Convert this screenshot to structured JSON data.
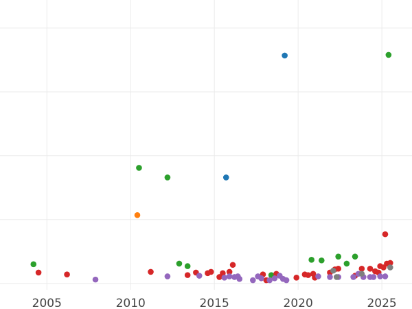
{
  "chart_data": {
    "type": "scatter",
    "title": "",
    "xlabel": "",
    "ylabel": "",
    "x_ticks": [
      2005,
      2010,
      2015,
      2020,
      2025
    ],
    "xlim": [
      2002.2,
      2026.8
    ],
    "ylim": [
      -0.1,
      4.44
    ],
    "y_gridlines": [
      0,
      1,
      2,
      3,
      4
    ],
    "grid": true,
    "legend": "none",
    "series": [
      {
        "color": "#1f77b4",
        "points": [
          [
            2019.2,
            3.57
          ],
          [
            2015.7,
            1.66
          ]
        ]
      },
      {
        "color": "#2ca02c",
        "points": [
          [
            2025.4,
            3.58
          ],
          [
            2010.5,
            1.81
          ],
          [
            2012.2,
            1.66
          ],
          [
            2004.2,
            0.3
          ],
          [
            2012.9,
            0.31
          ],
          [
            2013.4,
            0.27
          ],
          [
            2020.8,
            0.37
          ],
          [
            2021.4,
            0.36
          ],
          [
            2022.4,
            0.42
          ],
          [
            2023.4,
            0.42
          ],
          [
            2022.9,
            0.31
          ],
          [
            2018.4,
            0.13
          ]
        ]
      },
      {
        "color": "#ff7f0e",
        "points": [
          [
            2010.4,
            1.07
          ]
        ]
      },
      {
        "color": "#d62728",
        "points": [
          [
            2025.2,
            0.77
          ],
          [
            2004.5,
            0.17
          ],
          [
            2006.2,
            0.14
          ],
          [
            2011.2,
            0.18
          ],
          [
            2013.4,
            0.13
          ],
          [
            2013.9,
            0.17
          ],
          [
            2014.6,
            0.16
          ],
          [
            2014.8,
            0.18
          ],
          [
            2015.3,
            0.1
          ],
          [
            2015.5,
            0.16
          ],
          [
            2015.9,
            0.18
          ],
          [
            2016.1,
            0.29
          ],
          [
            2017.9,
            0.14
          ],
          [
            2018.1,
            0.05
          ],
          [
            2018.7,
            0.15
          ],
          [
            2019.9,
            0.09
          ],
          [
            2020.4,
            0.14
          ],
          [
            2020.6,
            0.13
          ],
          [
            2020.9,
            0.15
          ],
          [
            2021.0,
            0.09
          ],
          [
            2021.9,
            0.17
          ],
          [
            2022.2,
            0.22
          ],
          [
            2022.4,
            0.23
          ],
          [
            2023.4,
            0.12
          ],
          [
            2023.8,
            0.23
          ],
          [
            2024.3,
            0.23
          ],
          [
            2024.6,
            0.19
          ],
          [
            2024.8,
            0.17
          ],
          [
            2024.9,
            0.27
          ],
          [
            2025.1,
            0.25
          ],
          [
            2025.3,
            0.31
          ],
          [
            2025.5,
            0.32
          ]
        ]
      },
      {
        "color": "#9467bd",
        "points": [
          [
            2007.9,
            0.06
          ],
          [
            2012.2,
            0.11
          ],
          [
            2014.1,
            0.12
          ],
          [
            2015.6,
            0.09
          ],
          [
            2015.9,
            0.11
          ],
          [
            2016.2,
            0.1
          ],
          [
            2016.4,
            0.11
          ],
          [
            2016.5,
            0.07
          ],
          [
            2017.3,
            0.05
          ],
          [
            2017.6,
            0.11
          ],
          [
            2017.8,
            0.08
          ],
          [
            2018.3,
            0.05
          ],
          [
            2018.6,
            0.08
          ],
          [
            2018.9,
            0.12
          ],
          [
            2019.1,
            0.07
          ],
          [
            2019.3,
            0.05
          ],
          [
            2021.2,
            0.11
          ],
          [
            2021.9,
            0.1
          ],
          [
            2022.4,
            0.1
          ],
          [
            2023.3,
            0.1
          ],
          [
            2023.6,
            0.15
          ],
          [
            2023.9,
            0.1
          ],
          [
            2024.3,
            0.1
          ],
          [
            2024.5,
            0.1
          ],
          [
            2024.9,
            0.11
          ],
          [
            2025.2,
            0.11
          ]
        ]
      },
      {
        "color": "#7f7f7f",
        "points": [
          [
            2022.1,
            0.2
          ],
          [
            2022.3,
            0.1
          ],
          [
            2023.8,
            0.15
          ],
          [
            2025.5,
            0.25
          ]
        ]
      }
    ]
  }
}
